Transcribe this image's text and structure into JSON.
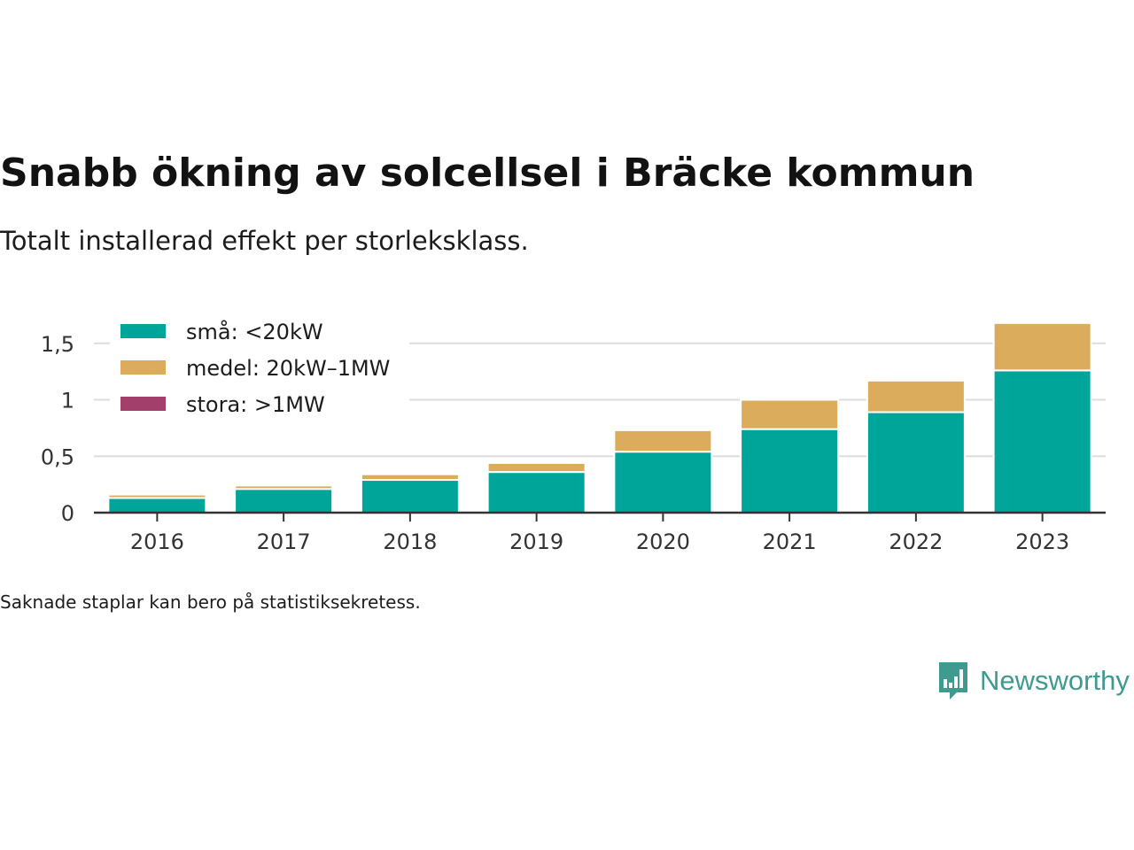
{
  "title": "Snabb ökning av solcellsel i Bräcke kommun",
  "subtitle": "Totalt installerad effekt per storleksklass.",
  "note": "Saknade staplar kan bero på statistiksekretess.",
  "brand": {
    "name": "Newsworthy",
    "icon": "newsworthy-logo-icon",
    "color": "#3f9a90"
  },
  "chart_data": {
    "type": "bar",
    "stacked": true,
    "categories": [
      "2016",
      "2017",
      "2018",
      "2019",
      "2020",
      "2021",
      "2022",
      "2023"
    ],
    "series": [
      {
        "name": "små: <20kW",
        "color": "#00a59a",
        "values": [
          0.13,
          0.21,
          0.29,
          0.36,
          0.54,
          0.74,
          0.89,
          1.26
        ]
      },
      {
        "name": "medel: 20kW–1MW",
        "color": "#dbac5b",
        "values": [
          0.03,
          0.03,
          0.05,
          0.08,
          0.19,
          0.26,
          0.28,
          0.42
        ]
      },
      {
        "name": "stora: >1MW",
        "color": "#a23f6a",
        "values": [
          0,
          0,
          0,
          0,
          0,
          0,
          0,
          0
        ]
      }
    ],
    "ylim": [
      0,
      1.75
    ],
    "yticks": [
      0,
      0.5,
      1,
      1.5
    ],
    "ytick_labels": [
      "0",
      "0,5",
      "1",
      "1,5"
    ],
    "grid": true,
    "legend": "top-left"
  }
}
